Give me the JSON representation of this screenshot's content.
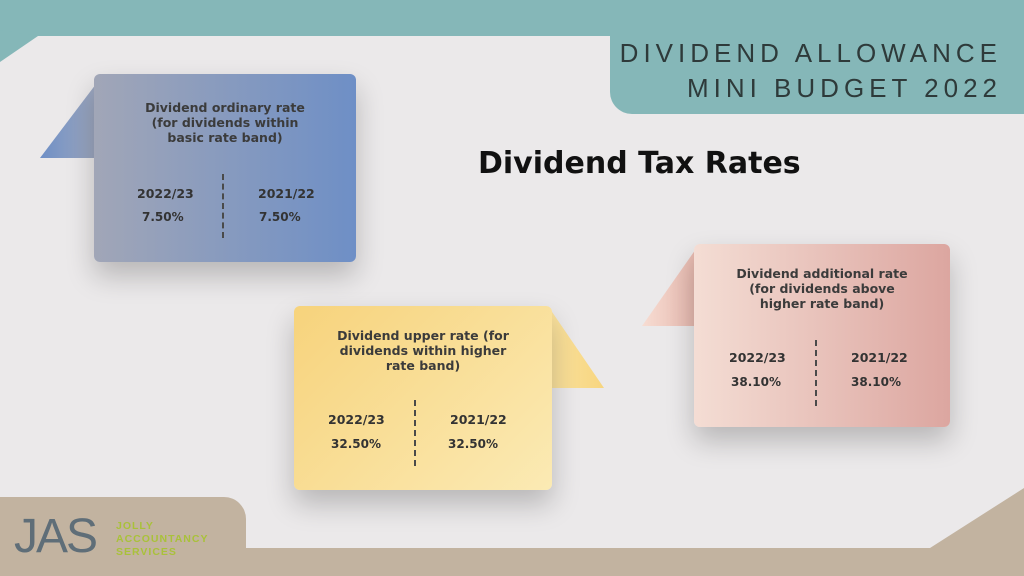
{
  "header": {
    "line1": "DIVIDEND ALLOWANCE",
    "line2": "MINI BUDGET 2022"
  },
  "title": "Dividend Tax Rates",
  "cards": [
    {
      "title_lines": [
        "Dividend ordinary rate",
        "(for dividends within",
        "basic rate band)"
      ],
      "year_left": "2022/23",
      "rate_left": "7.50%",
      "year_right": "2021/22",
      "rate_right": "7.50%"
    },
    {
      "title_lines": [
        "Dividend upper rate (for",
        "dividends within higher",
        "rate band)"
      ],
      "year_left": "2022/23",
      "rate_left": "32.50%",
      "year_right": "2021/22",
      "rate_right": "32.50%"
    },
    {
      "title_lines": [
        "Dividend additional rate",
        "(for dividends above",
        "higher rate band)"
      ],
      "year_left": "2022/23",
      "rate_left": "38.10%",
      "year_right": "2021/22",
      "rate_right": "38.10%"
    }
  ],
  "logo": {
    "mark": "JAS",
    "line1": "JOLLY",
    "line2": "ACCOUNTANCY",
    "line3": "SERVICES"
  },
  "colors": {
    "teal": "#85b7b8",
    "tan": "#c2b3a0",
    "background": "#ebe9ea",
    "logo_green": "#a9c13a"
  }
}
